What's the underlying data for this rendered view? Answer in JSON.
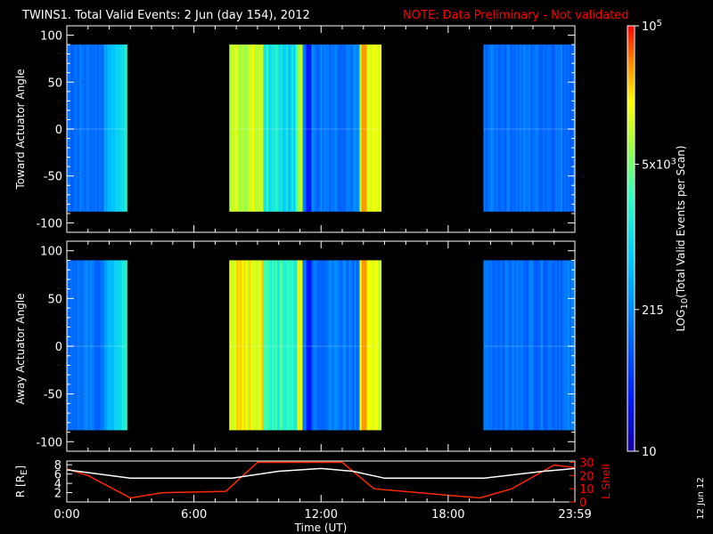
{
  "chart_data": [
    {
      "type": "heatmap",
      "title": "TWINS1. Total Valid Events:  2 Jun (day 154), 2012",
      "note": "NOTE: Data Preliminary - Not validated",
      "panels": [
        {
          "ylabel": "Toward Actuator Angle",
          "ylim": [
            -110,
            110
          ],
          "yticks": [
            "100",
            "50",
            "0",
            "-50",
            "-100"
          ],
          "angle_range": [
            -88,
            90
          ],
          "data_intervals": [
            {
              "start": "0:00",
              "end": "2:50",
              "level": "low"
            },
            {
              "start": "7:40",
              "end": "14:50",
              "level": "high"
            },
            {
              "start": "19:40",
              "end": "23:59",
              "level": "low"
            }
          ]
        },
        {
          "ylabel": "Away Actuator Angle",
          "ylim": [
            -110,
            110
          ],
          "yticks": [
            "100",
            "50",
            "0",
            "-50",
            "-100"
          ],
          "angle_range": [
            -88,
            90
          ],
          "data_intervals": [
            {
              "start": "0:00",
              "end": "2:50",
              "level": "low"
            },
            {
              "start": "7:40",
              "end": "14:50",
              "level": "high"
            },
            {
              "start": "19:40",
              "end": "23:59",
              "level": "low"
            }
          ]
        }
      ],
      "colorbar": {
        "label": "LOG",
        "label_sub": "10",
        "label_rest": "(Total Valid Events per Scan)",
        "ticks": [
          {
            "value": 100000,
            "base": "10",
            "exp": "5"
          },
          {
            "value": 5000,
            "base": "5x10",
            "exp": "3"
          },
          {
            "value": 215,
            "text": "215"
          },
          {
            "value": 10,
            "text": "10"
          }
        ],
        "range": [
          10,
          100000
        ],
        "scale": "log"
      },
      "orbit_panel": {
        "left_label": "R [R",
        "left_label_sub": "E",
        "left_label_end": "]",
        "right_label": "L Shell",
        "left_ticks": [
          "8",
          "6",
          "4",
          "2"
        ],
        "right_ticks": [
          "30",
          "20",
          "10",
          "0"
        ],
        "R_series": {
          "x_hours": [
            0,
            3,
            7.8,
            10,
            12,
            13.5,
            15,
            19.7,
            22.5,
            23.98
          ],
          "values": [
            6.9,
            5.1,
            5.1,
            6.6,
            7.2,
            6.6,
            5.1,
            5.1,
            6.6,
            7.2
          ]
        },
        "L_series": {
          "x_hours": [
            0,
            1,
            3,
            4.5,
            7.5,
            9,
            13,
            14.5,
            19.5,
            21,
            23,
            23.98
          ],
          "values": [
            25,
            20,
            3,
            7,
            8,
            30,
            30,
            10,
            3,
            10,
            28,
            26
          ]
        }
      },
      "xlabel": "Time (UT)",
      "xticks": [
        "0:00",
        "6:00",
        "12:00",
        "18:00",
        "23:59"
      ],
      "xlim_hours": [
        0,
        23.98
      ],
      "stamp": "12 Jun 12",
      "colors": {
        "L_series": "#ff2a00",
        "R_series": "#ffffff",
        "note": "#ff0000"
      }
    }
  ]
}
